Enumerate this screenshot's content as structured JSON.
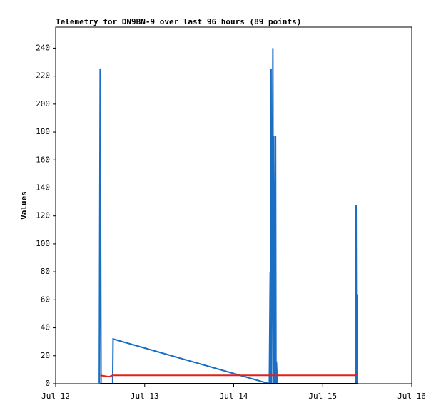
{
  "chart_data": {
    "type": "line",
    "title": "Telemetry for DN9BN-9 over last 96 hours (89 points)",
    "y_label": "Values",
    "xlim": [
      12,
      16
    ],
    "xticks": [
      {
        "value": 12,
        "label": "Jul 12"
      },
      {
        "value": 13,
        "label": "Jul 13"
      },
      {
        "value": 14,
        "label": "Jul 14"
      },
      {
        "value": 15,
        "label": "Jul 15"
      },
      {
        "value": 16,
        "label": "Jul 16"
      }
    ],
    "ylim": [
      0,
      255
    ],
    "yticks": [
      0,
      20,
      40,
      60,
      80,
      100,
      120,
      140,
      160,
      180,
      200,
      220,
      240
    ],
    "grid": false,
    "series": [
      {
        "color": "#1a6fc4",
        "x": [
          12.49,
          12.5,
          12.51,
          12.64,
          12.645,
          14.4,
          14.41,
          14.415,
          14.42,
          14.425,
          14.44,
          14.445,
          14.45,
          14.46,
          14.47,
          14.475,
          14.48,
          14.49,
          15.37,
          15.375,
          15.38,
          15.385,
          15.39
        ],
        "values": [
          0,
          225,
          0,
          0,
          32,
          0,
          80,
          0,
          225,
          0,
          240,
          0,
          177,
          0,
          177,
          0,
          16,
          0,
          0,
          128,
          0,
          64,
          0
        ]
      },
      {
        "color": "#e0201b",
        "x": [
          12.5,
          12.6,
          12.64,
          15.37,
          15.39
        ],
        "values": [
          6,
          5,
          6,
          6,
          7
        ]
      },
      {
        "color": "#000000",
        "x": [
          12.5,
          15.39
        ],
        "values": [
          0,
          0
        ]
      }
    ]
  }
}
